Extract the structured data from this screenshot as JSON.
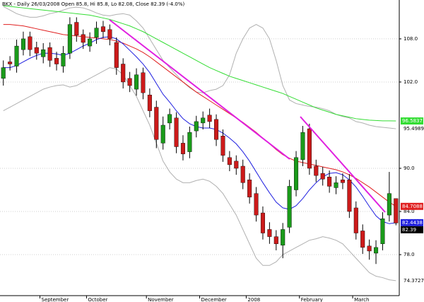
{
  "chart_data": {
    "type": "candlestick",
    "title": "BKX - Daily 26/03/2008 Open 85.8, Hi 85.8, Lo 82.08, Close 82.39 (-4.0%)",
    "categories": [
      null,
      null,
      null,
      null,
      null,
      null,
      "September",
      null,
      null,
      null,
      null,
      null,
      null,
      "October",
      null,
      null,
      null,
      null,
      null,
      null,
      null,
      null,
      "November",
      null,
      null,
      null,
      null,
      null,
      null,
      null,
      "December",
      null,
      null,
      null,
      null,
      null,
      null,
      "2008",
      null,
      null,
      null,
      null,
      null,
      null,
      null,
      "February",
      null,
      null,
      null,
      null,
      null,
      null,
      null,
      "March",
      null,
      null,
      null,
      null,
      null,
      null
    ],
    "open": [
      102.5,
      104.8,
      104.2,
      106.5,
      108.3,
      106.8,
      105.5,
      106.8,
      105.3,
      104.2,
      106,
      110.3,
      108.6,
      107,
      108.2,
      109.7,
      109.3,
      107.5,
      104.5,
      102.5,
      101,
      103.3,
      100.2,
      98.5,
      93.5,
      96.3,
      97,
      93.5,
      92.3,
      95.2,
      96.3,
      97.4,
      96.8,
      94.5,
      91.5,
      91,
      90.3,
      88.4,
      86.5,
      83.8,
      81.5,
      80.5,
      79.3,
      81.8,
      87,
      91.2,
      95.5,
      90.3,
      89.3,
      88.8,
      87.3,
      88.4,
      88.4,
      84.5,
      81.3,
      79.2,
      78.2,
      79.5,
      83.5,
      85.8
    ],
    "high": [
      105,
      105.6,
      107.9,
      109,
      109,
      107.6,
      107.4,
      107.5,
      106.2,
      107,
      111,
      111,
      109.3,
      108.9,
      110.4,
      110.5,
      110,
      108.2,
      105.3,
      103.4,
      103.9,
      104,
      101.1,
      99.4,
      97.2,
      98.3,
      97.8,
      94.6,
      95.8,
      97.3,
      97.9,
      98.3,
      97.5,
      95.4,
      92.4,
      91.8,
      91.2,
      89.3,
      87.4,
      84.7,
      82.5,
      81.4,
      82.4,
      88.4,
      92.4,
      95.9,
      96.2,
      91.2,
      90.2,
      89.7,
      88.9,
      89.3,
      89.2,
      85.4,
      82.2,
      80.1,
      80,
      83.9,
      89.5,
      85.8
    ],
    "low": [
      101.5,
      103.6,
      103.3,
      105.7,
      105.6,
      105.1,
      104.6,
      104.1,
      103.6,
      103.3,
      105.2,
      107.6,
      106.6,
      106.2,
      107.3,
      108.1,
      107.1,
      103,
      101.1,
      100.6,
      100.1,
      99.6,
      97.1,
      92.8,
      92.6,
      95.4,
      92.1,
      91.1,
      91.4,
      94.3,
      95.4,
      95.6,
      93.1,
      90.9,
      89.6,
      89.1,
      87.1,
      85.1,
      82.6,
      80.1,
      79.5,
      78.6,
      77.5,
      81,
      86.1,
      90.3,
      89.1,
      88.1,
      87.6,
      86.6,
      86.4,
      87.1,
      83.1,
      80.1,
      78.1,
      77.3,
      76.7,
      78.6,
      82.6,
      82.08
    ],
    "close": [
      104,
      104.5,
      107,
      108,
      106.5,
      106,
      106.5,
      105,
      104.5,
      106,
      110,
      108.5,
      107.5,
      108,
      109.5,
      109,
      108,
      104,
      102,
      101.5,
      103,
      100.5,
      98,
      94,
      96,
      97.5,
      93,
      92,
      95,
      96.5,
      97,
      96.5,
      94,
      91.8,
      90.5,
      90,
      88,
      86,
      83.5,
      81,
      80.5,
      79.5,
      81.5,
      87.5,
      91.5,
      95,
      90,
      89,
      88.5,
      87.5,
      88,
      88,
      84,
      81,
      79,
      78.5,
      79,
      83,
      86.5,
      82.39
    ],
    "up_color": "#1a9a1a",
    "down_color": "#cc1a1a",
    "close_color": "#000000",
    "ylim": [
      72.3,
      113.4
    ],
    "yticks": [
      {
        "value": 108,
        "label": "108.0"
      },
      {
        "value": 102,
        "label": "102.0"
      },
      {
        "value": 90,
        "label": "90.0"
      },
      {
        "value": 84,
        "label": "84.0"
      },
      {
        "value": 78,
        "label": "78.0"
      }
    ],
    "grid": true,
    "series": [
      {
        "color": "#b0b0b0",
        "end_label": "text",
        "values": [
          112.5,
          112,
          111.5,
          111.2,
          111,
          111,
          111.2,
          111.5,
          111.7,
          112,
          112.3,
          112.4,
          112.3,
          112,
          111.6,
          111.3,
          111.2,
          111.4,
          111.5,
          111.3,
          110.5,
          109.5,
          108,
          106.5,
          105,
          104,
          103,
          102,
          101.2,
          100.6,
          100.5,
          100.8,
          101,
          101.5,
          103,
          106,
          108,
          109.5,
          110,
          109.5,
          108,
          105,
          101.5,
          99.5,
          99,
          98.8,
          98.6,
          98.5,
          98.3,
          98,
          97.5,
          97.2,
          97,
          96.5,
          96.3,
          96,
          95.8,
          95.7,
          95.6,
          95.4989
        ]
      },
      {
        "color": "#b0b0b0",
        "end_label": "text",
        "values": [
          98,
          98.5,
          99,
          99.5,
          100,
          100.5,
          101,
          101.3,
          101.5,
          101.6,
          101.3,
          101.5,
          102,
          102.5,
          103,
          103.5,
          104,
          103.8,
          103,
          101.5,
          100,
          98,
          96,
          93.5,
          91,
          89.5,
          88.5,
          88,
          88,
          88.3,
          88.5,
          88.2,
          87.5,
          86.5,
          85,
          83.5,
          81.5,
          79.5,
          77.5,
          76.5,
          76.5,
          77,
          78,
          78.5,
          79,
          79.5,
          80,
          80.2,
          80.5,
          80.3,
          80,
          79.5,
          78.5,
          77.5,
          76.5,
          75.5,
          75,
          74.8,
          74.5,
          74.3727
        ]
      },
      {
        "color": "#33dd33",
        "end_label": "box",
        "values": [
          112.6,
          112.5,
          112.4,
          112.3,
          112.2,
          112.1,
          112,
          111.9,
          111.8,
          111.7,
          111.6,
          111.5,
          111.4,
          111.3,
          111.1,
          110.9,
          110.7,
          110.4,
          110.1,
          109.8,
          109.4,
          109,
          108.5,
          108,
          107.5,
          107,
          106.5,
          106,
          105.5,
          105,
          104.5,
          104,
          103.6,
          103.2,
          102.8,
          102.5,
          102.2,
          101.9,
          101.6,
          101.3,
          101,
          100.7,
          100.4,
          100,
          99.6,
          99.2,
          98.8,
          98.4,
          98.1,
          97.8,
          97.5,
          97.3,
          97.1,
          96.9,
          96.8,
          96.7,
          96.65,
          96.6,
          96.6,
          96.5837
        ]
      },
      {
        "color": "#e02020",
        "end_label": "box",
        "values": [
          110,
          110,
          109.9,
          109.8,
          109.6,
          109.4,
          109.2,
          109,
          108.8,
          108.6,
          108.5,
          108.4,
          108.3,
          108.2,
          108.1,
          108,
          107.9,
          107.7,
          107.4,
          107,
          106.6,
          106.1,
          105.5,
          104.8,
          104.1,
          103.4,
          102.7,
          102,
          101.3,
          100.6,
          100,
          99.4,
          98.8,
          98.2,
          97.6,
          97,
          96.4,
          95.7,
          95,
          94.2,
          93.4,
          92.6,
          91.9,
          91.4,
          91,
          90.8,
          90.6,
          90.4,
          90.2,
          90,
          89.8,
          89.5,
          89.1,
          88.6,
          88,
          87.4,
          86.7,
          86,
          85.3,
          84.7088
        ]
      },
      {
        "color": "#2020e0",
        "end_label": "box",
        "values": [
          104,
          104,
          104.3,
          104.8,
          105.3,
          105.7,
          106,
          106,
          105.9,
          105.7,
          106,
          106.5,
          107,
          107.4,
          107.9,
          108.2,
          108.3,
          108,
          107.3,
          106.4,
          105.5,
          104.5,
          103.3,
          101.8,
          100.3,
          99.2,
          98,
          96.9,
          96.2,
          95.8,
          95.6,
          95.6,
          95.4,
          94.9,
          94.2,
          93.4,
          92.3,
          91,
          89.5,
          88,
          86.6,
          85.3,
          84.5,
          84.3,
          84.8,
          85.8,
          87,
          88,
          88.8,
          89.3,
          89.4,
          89.1,
          88.4,
          87.4,
          86.1,
          84.7,
          83.4,
          82.6,
          82.3,
          82.4438
        ]
      }
    ]
  }
}
